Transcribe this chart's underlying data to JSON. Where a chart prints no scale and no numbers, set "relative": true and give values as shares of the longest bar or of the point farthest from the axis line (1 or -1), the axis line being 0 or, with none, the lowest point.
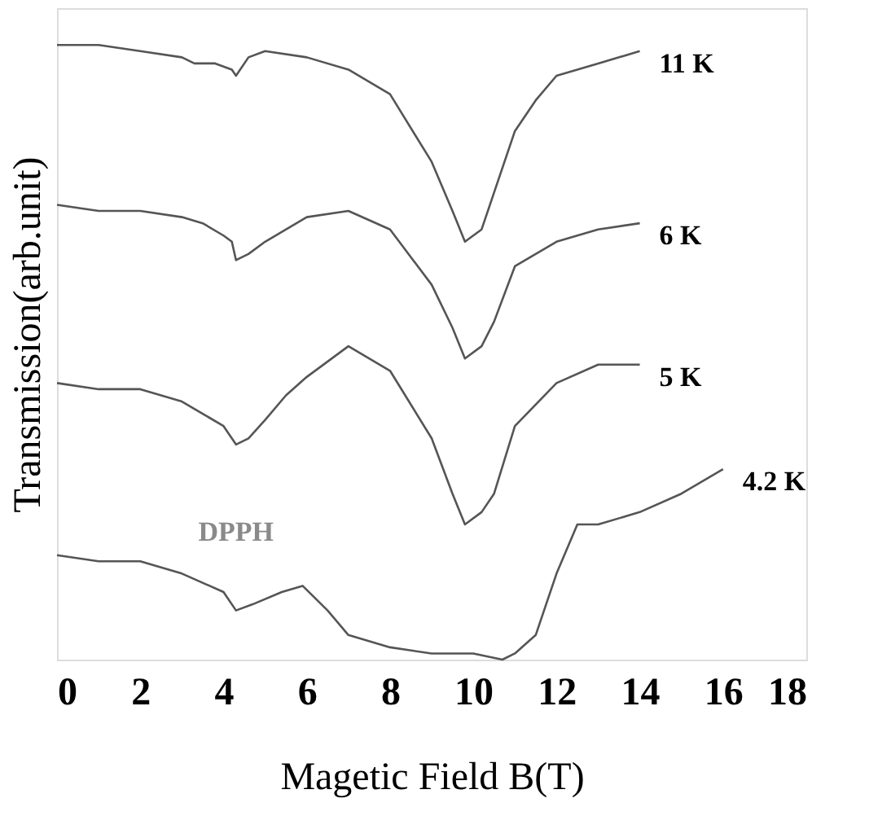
{
  "chart_data": {
    "type": "line",
    "relative": true,
    "xlabel": "Magetic Field B(T)",
    "ylabel": "Transmission(arb.unit)",
    "xlim": [
      0,
      18
    ],
    "xticks": [
      0,
      2,
      4,
      6,
      8,
      10,
      12,
      14,
      16,
      18
    ],
    "grid": false,
    "legend": false,
    "marker": "none",
    "line_style": "solid",
    "annotations": [
      {
        "text": "DPPH",
        "x": 4.3,
        "y": 0.08
      }
    ],
    "series": [
      {
        "name": "11 K",
        "color": "#555555",
        "x": [
          0,
          1,
          2,
          3,
          3.3,
          3.8,
          4.2,
          4.3,
          4.6,
          5,
          6,
          7,
          8,
          9,
          9.5,
          9.8,
          10.2,
          10.5,
          11,
          11.5,
          12,
          13,
          14
        ],
        "values": [
          1.0,
          1.0,
          0.99,
          0.98,
          0.97,
          0.97,
          0.96,
          0.95,
          0.98,
          0.99,
          0.98,
          0.96,
          0.92,
          0.81,
          0.73,
          0.68,
          0.7,
          0.76,
          0.86,
          0.91,
          0.95,
          0.97,
          0.99
        ]
      },
      {
        "name": "6 K",
        "color": "#555555",
        "x": [
          0,
          1,
          2,
          3,
          3.5,
          4,
          4.2,
          4.3,
          4.6,
          5,
          6,
          7,
          8,
          9,
          9.5,
          9.8,
          10.2,
          10.5,
          11,
          12,
          13,
          14
        ],
        "values": [
          0.74,
          0.73,
          0.73,
          0.72,
          0.71,
          0.69,
          0.68,
          0.65,
          0.66,
          0.68,
          0.72,
          0.73,
          0.7,
          0.61,
          0.54,
          0.49,
          0.51,
          0.55,
          0.64,
          0.68,
          0.7,
          0.71
        ]
      },
      {
        "name": "5 K",
        "color": "#555555",
        "x": [
          0,
          1,
          2,
          3,
          3.5,
          4,
          4.2,
          4.3,
          4.6,
          5,
          5.5,
          6,
          7,
          8,
          9,
          9.5,
          9.8,
          10.2,
          10.5,
          11,
          12,
          13,
          14
        ],
        "values": [
          0.45,
          0.44,
          0.44,
          0.42,
          0.4,
          0.38,
          0.36,
          0.35,
          0.36,
          0.39,
          0.43,
          0.46,
          0.51,
          0.47,
          0.36,
          0.27,
          0.22,
          0.24,
          0.27,
          0.38,
          0.45,
          0.48,
          0.48
        ]
      },
      {
        "name": "4.2 K",
        "color": "#555555",
        "x": [
          0,
          1,
          2,
          3,
          4,
          4.3,
          4.7,
          5.4,
          5.9,
          6.5,
          7,
          8,
          9,
          10,
          10.7,
          11,
          11.5,
          12,
          12.5,
          13,
          14,
          15,
          16
        ],
        "values": [
          0.17,
          0.16,
          0.16,
          0.14,
          0.11,
          0.08,
          0.09,
          0.11,
          0.12,
          0.08,
          0.04,
          0.02,
          0.01,
          0.01,
          0.0,
          0.01,
          0.04,
          0.14,
          0.22,
          0.22,
          0.24,
          0.27,
          0.31
        ]
      }
    ]
  }
}
